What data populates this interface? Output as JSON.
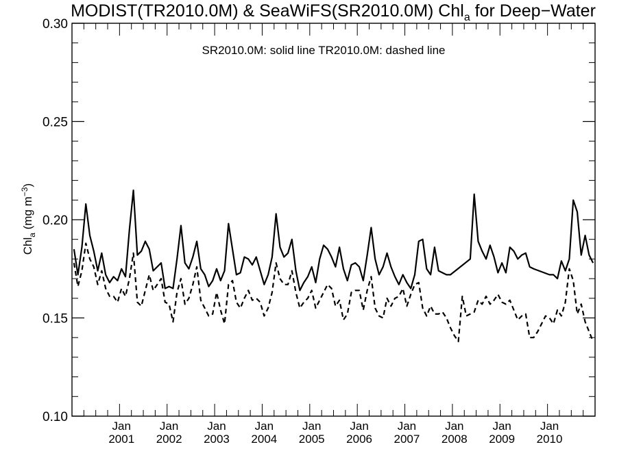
{
  "chart_data": {
    "type": "line",
    "title": {
      "prefix": "MODIST(TR2010.0M) & SeaWiFS(SR2010.0M)  Chl",
      "subscript": "a",
      "suffix": " for Deep−Water"
    },
    "annotation": "SR2010.0M: solid line   TR2010.0M: dashed line",
    "ylabel": {
      "base": "Chl",
      "subscript": "a",
      "units": " (mg m",
      "superscript": "−3",
      "close": ")"
    },
    "ylim": [
      0.1,
      0.3
    ],
    "yticks": [
      0.1,
      0.15,
      0.2,
      0.25,
      0.3
    ],
    "ytick_labels": [
      "0.10",
      "0.15",
      "0.20",
      "0.25",
      "0.30"
    ],
    "xlim": [
      "2000-01",
      "2010-12"
    ],
    "xtick_labels": [
      {
        "month": "Jan",
        "year": "2001"
      },
      {
        "month": "Jan",
        "year": "2002"
      },
      {
        "month": "Jan",
        "year": "2003"
      },
      {
        "month": "Jan",
        "year": "2004"
      },
      {
        "month": "Jan",
        "year": "2005"
      },
      {
        "month": "Jan",
        "year": "2006"
      },
      {
        "month": "Jan",
        "year": "2007"
      },
      {
        "month": "Jan",
        "year": "2008"
      },
      {
        "month": "Jan",
        "year": "2009"
      },
      {
        "month": "Jan",
        "year": "2010"
      }
    ],
    "grid": false,
    "series": [
      {
        "label": "SR2010.0M",
        "style": "solid",
        "color": "#000000",
        "x": [
          "2000-01",
          "2000-02",
          "2000-03",
          "2000-04",
          "2000-05",
          "2000-06",
          "2000-07",
          "2000-08",
          "2000-09",
          "2000-10",
          "2000-11",
          "2000-12",
          "2001-01",
          "2001-02",
          "2001-03",
          "2001-04",
          "2001-05",
          "2001-06",
          "2001-07",
          "2001-08",
          "2001-09",
          "2001-10",
          "2001-11",
          "2001-12",
          "2002-01",
          "2002-02",
          "2002-03",
          "2002-04",
          "2002-05",
          "2002-06",
          "2002-07",
          "2002-08",
          "2002-09",
          "2002-10",
          "2002-11",
          "2002-12",
          "2003-01",
          "2003-02",
          "2003-03",
          "2003-04",
          "2003-05",
          "2003-06",
          "2003-07",
          "2003-08",
          "2003-09",
          "2003-10",
          "2003-11",
          "2003-12",
          "2004-01",
          "2004-02",
          "2004-03",
          "2004-04",
          "2004-05",
          "2004-06",
          "2004-07",
          "2004-08",
          "2004-09",
          "2004-10",
          "2004-11",
          "2004-12",
          "2005-01",
          "2005-02",
          "2005-03",
          "2005-04",
          "2005-05",
          "2005-06",
          "2005-07",
          "2005-08",
          "2005-09",
          "2005-10",
          "2005-11",
          "2005-12",
          "2006-01",
          "2006-02",
          "2006-03",
          "2006-04",
          "2006-05",
          "2006-06",
          "2006-07",
          "2006-08",
          "2006-09",
          "2006-10",
          "2006-11",
          "2006-12",
          "2007-01",
          "2007-02",
          "2007-03",
          "2007-04",
          "2007-05",
          "2007-06",
          "2007-07",
          "2007-08",
          "2007-09",
          "2007-10",
          "2007-11",
          "2007-12",
          "2008-05",
          "2008-06",
          "2008-07",
          "2008-08",
          "2008-09",
          "2008-10",
          "2008-11",
          "2008-12",
          "2009-01",
          "2009-02",
          "2009-03",
          "2009-04",
          "2009-05",
          "2009-06",
          "2009-07",
          "2009-08",
          "2009-09",
          "2010-01",
          "2010-02",
          "2010-03",
          "2010-04",
          "2010-05",
          "2010-06",
          "2010-07",
          "2010-08",
          "2010-09",
          "2010-10",
          "2010-11",
          "2010-12"
        ],
        "y": [
          0.185,
          0.172,
          0.186,
          0.208,
          0.192,
          0.184,
          0.174,
          0.183,
          0.172,
          0.168,
          0.171,
          0.169,
          0.175,
          0.171,
          0.195,
          0.215,
          0.182,
          0.184,
          0.189,
          0.185,
          0.174,
          0.176,
          0.178,
          0.165,
          0.166,
          0.165,
          0.18,
          0.197,
          0.178,
          0.175,
          0.181,
          0.189,
          0.175,
          0.172,
          0.166,
          0.169,
          0.175,
          0.169,
          0.174,
          0.198,
          0.185,
          0.172,
          0.173,
          0.181,
          0.18,
          0.177,
          0.181,
          0.174,
          0.167,
          0.172,
          0.181,
          0.203,
          0.186,
          0.181,
          0.183,
          0.19,
          0.174,
          0.164,
          0.168,
          0.171,
          0.176,
          0.168,
          0.18,
          0.187,
          0.185,
          0.181,
          0.176,
          0.186,
          0.175,
          0.169,
          0.177,
          0.178,
          0.176,
          0.169,
          0.182,
          0.196,
          0.18,
          0.172,
          0.176,
          0.183,
          0.176,
          0.171,
          0.167,
          0.172,
          0.168,
          0.165,
          0.172,
          0.189,
          0.19,
          0.175,
          0.172,
          0.186,
          0.174,
          0.173,
          0.172,
          0.172,
          0.18,
          0.213,
          0.189,
          0.184,
          0.18,
          0.187,
          0.181,
          0.173,
          0.178,
          0.173,
          0.186,
          0.184,
          0.18,
          0.182,
          0.183,
          0.176,
          0.175,
          0.172,
          0.172,
          0.17,
          0.179,
          0.174,
          0.18,
          0.21,
          0.204,
          0.182,
          0.192,
          0.182,
          0.178
        ]
      },
      {
        "label": "TR2010.0M",
        "style": "dashed",
        "color": "#000000",
        "x": [
          "2000-01",
          "2000-02",
          "2000-03",
          "2000-04",
          "2000-05",
          "2000-06",
          "2000-07",
          "2000-08",
          "2000-09",
          "2000-10",
          "2000-11",
          "2000-12",
          "2001-01",
          "2001-02",
          "2001-03",
          "2001-04",
          "2001-05",
          "2001-06",
          "2001-07",
          "2001-08",
          "2001-09",
          "2001-10",
          "2001-11",
          "2001-12",
          "2002-01",
          "2002-02",
          "2002-03",
          "2002-04",
          "2002-05",
          "2002-06",
          "2002-07",
          "2002-08",
          "2002-09",
          "2002-10",
          "2002-11",
          "2002-12",
          "2003-01",
          "2003-02",
          "2003-03",
          "2003-04",
          "2003-05",
          "2003-06",
          "2003-07",
          "2003-08",
          "2003-09",
          "2003-10",
          "2003-11",
          "2003-12",
          "2004-01",
          "2004-02",
          "2004-03",
          "2004-04",
          "2004-05",
          "2004-06",
          "2004-07",
          "2004-08",
          "2004-09",
          "2004-10",
          "2004-11",
          "2004-12",
          "2005-01",
          "2005-02",
          "2005-03",
          "2005-04",
          "2005-05",
          "2005-06",
          "2005-07",
          "2005-08",
          "2005-09",
          "2005-10",
          "2005-11",
          "2005-12",
          "2006-01",
          "2006-02",
          "2006-03",
          "2006-04",
          "2006-05",
          "2006-06",
          "2006-07",
          "2006-08",
          "2006-09",
          "2006-10",
          "2006-11",
          "2006-12",
          "2007-01",
          "2007-02",
          "2007-03",
          "2007-04",
          "2007-05",
          "2007-06",
          "2007-07",
          "2007-08",
          "2007-09",
          "2007-10",
          "2007-11",
          "2007-12",
          "2008-01",
          "2008-02",
          "2008-03",
          "2008-04",
          "2008-05",
          "2008-06",
          "2008-07",
          "2008-08",
          "2008-09",
          "2008-10",
          "2008-11",
          "2008-12",
          "2009-01",
          "2009-02",
          "2009-03",
          "2009-04",
          "2009-05",
          "2009-06",
          "2009-07",
          "2009-08",
          "2009-09",
          "2009-10",
          "2009-11",
          "2009-12",
          "2010-01",
          "2010-02",
          "2010-03",
          "2010-04",
          "2010-05",
          "2010-06",
          "2010-07",
          "2010-08",
          "2010-09",
          "2010-10",
          "2010-11",
          "2010-12"
        ],
        "y": [
          0.178,
          0.166,
          0.174,
          0.188,
          0.18,
          0.176,
          0.167,
          0.174,
          0.165,
          0.161,
          0.161,
          0.158,
          0.165,
          0.161,
          0.17,
          0.183,
          0.158,
          0.156,
          0.164,
          0.172,
          0.164,
          0.167,
          0.17,
          0.158,
          0.157,
          0.148,
          0.163,
          0.17,
          0.157,
          0.16,
          0.167,
          0.176,
          0.159,
          0.155,
          0.151,
          0.152,
          0.163,
          0.154,
          0.147,
          0.167,
          0.169,
          0.158,
          0.155,
          0.16,
          0.164,
          0.159,
          0.16,
          0.158,
          0.151,
          0.155,
          0.163,
          0.178,
          0.17,
          0.167,
          0.167,
          0.174,
          0.163,
          0.155,
          0.158,
          0.16,
          0.164,
          0.155,
          0.159,
          0.163,
          0.167,
          0.165,
          0.156,
          0.159,
          0.149,
          0.152,
          0.163,
          0.164,
          0.164,
          0.154,
          0.164,
          0.171,
          0.155,
          0.151,
          0.15,
          0.16,
          0.156,
          0.16,
          0.161,
          0.165,
          0.156,
          0.162,
          0.167,
          0.168,
          0.155,
          0.151,
          0.156,
          0.152,
          0.152,
          0.153,
          0.15,
          0.145,
          0.141,
          0.138,
          0.161,
          0.151,
          0.152,
          0.153,
          0.159,
          0.157,
          0.161,
          0.157,
          0.159,
          0.162,
          0.158,
          0.157,
          0.159,
          0.154,
          0.149,
          0.151,
          0.152,
          0.14,
          0.14,
          0.143,
          0.147,
          0.151,
          0.15,
          0.147,
          0.154,
          0.151,
          0.158,
          0.175,
          0.169,
          0.152,
          0.157,
          0.148,
          0.143,
          0.138
        ]
      }
    ]
  }
}
